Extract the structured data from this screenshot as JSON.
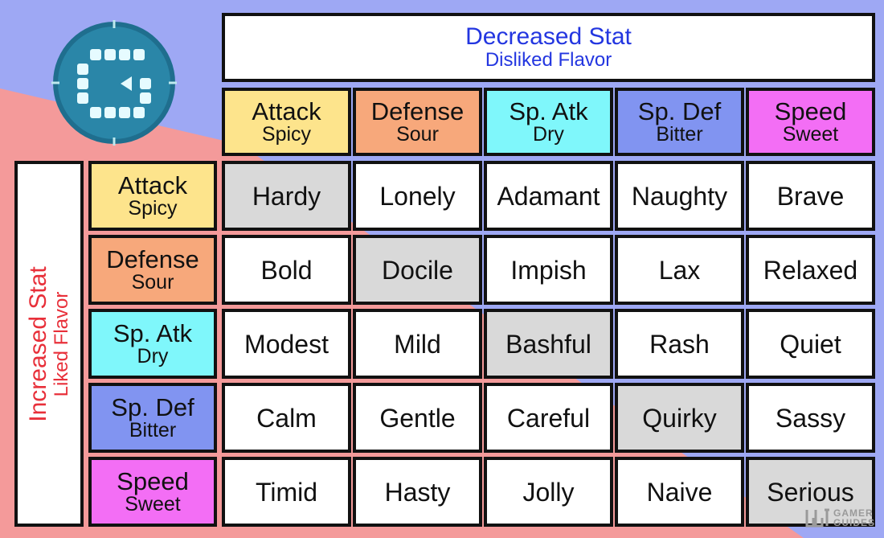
{
  "colors": {
    "background_pink": "#f49a9a",
    "background_blue": "#9ea8f4",
    "attack": "#fde48c",
    "defense": "#f7a87b",
    "sp_atk": "#7ff7fb",
    "sp_def": "#8194f1",
    "speed": "#f36ef5",
    "neutral_cell": "#d9d9d9",
    "normal_cell": "#ffffff",
    "decreased_text": "#2336e0",
    "increased_text": "#e8303a"
  },
  "logo": {
    "icon": "gamerguides-logo-icon"
  },
  "decreased_header": {
    "title": "Decreased Stat",
    "subtitle": "Disliked Flavor"
  },
  "increased_header": {
    "title": "Increased Stat",
    "subtitle": "Liked Flavor"
  },
  "stats": [
    {
      "name": "Attack",
      "flavor": "Spicy",
      "color": "#fde48c"
    },
    {
      "name": "Defense",
      "flavor": "Sour",
      "color": "#f7a87b"
    },
    {
      "name": "Sp. Atk",
      "flavor": "Dry",
      "color": "#7ff7fb"
    },
    {
      "name": "Sp. Def",
      "flavor": "Bitter",
      "color": "#8194f1"
    },
    {
      "name": "Speed",
      "flavor": "Sweet",
      "color": "#f36ef5"
    }
  ],
  "natures": [
    [
      "Hardy",
      "Lonely",
      "Adamant",
      "Naughty",
      "Brave"
    ],
    [
      "Bold",
      "Docile",
      "Impish",
      "Lax",
      "Relaxed"
    ],
    [
      "Modest",
      "Mild",
      "Bashful",
      "Rash",
      "Quiet"
    ],
    [
      "Calm",
      "Gentle",
      "Careful",
      "Quirky",
      "Sassy"
    ],
    [
      "Timid",
      "Hasty",
      "Jolly",
      "Naive",
      "Serious"
    ]
  ],
  "watermark": {
    "line1": "GAMER",
    "line2": "GUIDES",
    "icon": "gamerguides-mark-icon"
  }
}
